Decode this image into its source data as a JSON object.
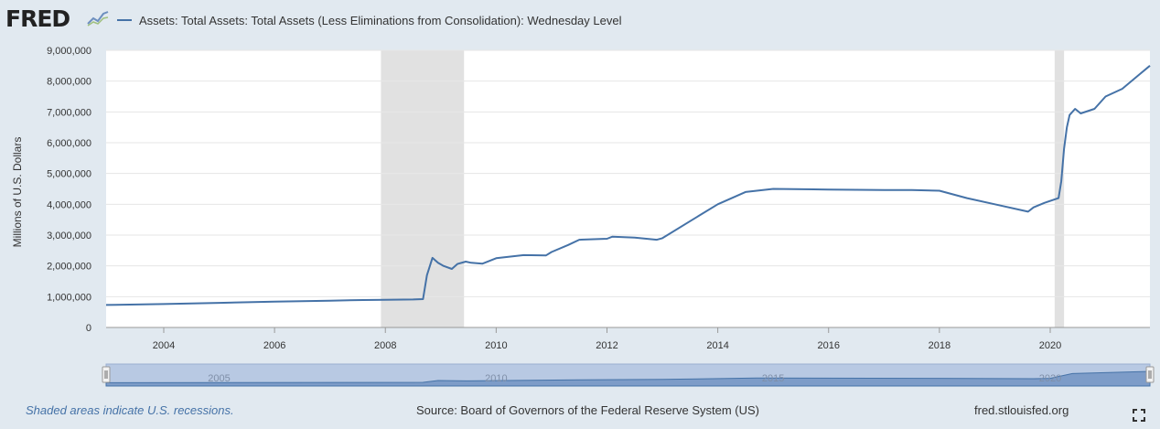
{
  "header": {
    "logo_text": "FRED",
    "logo_icon": "line-graph-icon",
    "legend_label": "Assets: Total Assets: Total Assets (Less Eliminations from Consolidation): Wednesday Level"
  },
  "footer": {
    "recession_note": "Shaded areas indicate U.S. recessions.",
    "source": "Source: Board of Governors of the Federal Reserve System (US)",
    "url": "fred.stlouisfed.org",
    "fullscreen_icon": "fullscreen-icon"
  },
  "navigator": {
    "labels": [
      "2005",
      "2010",
      "2015",
      "2020"
    ]
  },
  "colors": {
    "series": "#4572a7",
    "recession": "#e1e1e1",
    "background": "#e1e9f0",
    "navigator_fill": "#b8c9e3"
  },
  "chart_data": {
    "type": "line",
    "title": "",
    "xlabel": "",
    "ylabel": "Millions of U.S. Dollars",
    "xlim": [
      2002.96,
      2021.8
    ],
    "ylim": [
      0,
      9000000
    ],
    "yticks": [
      0,
      1000000,
      2000000,
      3000000,
      4000000,
      5000000,
      6000000,
      7000000,
      8000000,
      9000000
    ],
    "ytick_labels": [
      "0",
      "1,000,000",
      "2,000,000",
      "3,000,000",
      "4,000,000",
      "5,000,000",
      "6,000,000",
      "7,000,000",
      "8,000,000",
      "9,000,000"
    ],
    "xticks": [
      2004,
      2006,
      2008,
      2010,
      2012,
      2014,
      2016,
      2018,
      2020
    ],
    "xtick_labels": [
      "2004",
      "2006",
      "2008",
      "2010",
      "2012",
      "2014",
      "2016",
      "2018",
      "2020"
    ],
    "grid": true,
    "recessions": [
      [
        2007.92,
        2009.42
      ],
      [
        2020.08,
        2020.25
      ]
    ],
    "series": [
      {
        "name": "Assets: Total Assets: Total Assets (Less Eliminations from Consolidation): Wednesday Level",
        "x": [
          2002.96,
          2004,
          2005,
          2006,
          2007,
          2007.6,
          2008.0,
          2008.5,
          2008.68,
          2008.75,
          2008.85,
          2008.95,
          2009.05,
          2009.2,
          2009.3,
          2009.45,
          2009.55,
          2009.75,
          2010.0,
          2010.5,
          2010.9,
          2011.0,
          2011.3,
          2011.5,
          2012.0,
          2012.1,
          2012.5,
          2012.9,
          2013.0,
          2013.5,
          2014.0,
          2014.5,
          2015.0,
          2016.0,
          2017.0,
          2017.5,
          2018.0,
          2018.5,
          2019.0,
          2019.6,
          2019.7,
          2019.9,
          2020.15,
          2020.2,
          2020.25,
          2020.3,
          2020.35,
          2020.45,
          2020.55,
          2020.8,
          2021.0,
          2021.3,
          2021.6,
          2021.8
        ],
        "y": [
          730000,
          760000,
          800000,
          840000,
          870000,
          890000,
          900000,
          910000,
          920000,
          1700000,
          2260000,
          2100000,
          2000000,
          1900000,
          2060000,
          2140000,
          2100000,
          2070000,
          2250000,
          2350000,
          2340000,
          2450000,
          2680000,
          2850000,
          2880000,
          2950000,
          2920000,
          2850000,
          2900000,
          3450000,
          4000000,
          4400000,
          4500000,
          4480000,
          4460000,
          4460000,
          4440000,
          4200000,
          4000000,
          3760000,
          3900000,
          4050000,
          4200000,
          4750000,
          5800000,
          6500000,
          6900000,
          7100000,
          6950000,
          7100000,
          7500000,
          7750000,
          8200000,
          8500000
        ]
      }
    ],
    "navigator_x": [
      2002.96,
      2008.68,
      2008.95,
      2009.5,
      2011.5,
      2013.0,
      2014.7,
      2018.0,
      2019.7,
      2020.0,
      2020.4,
      2021.8
    ],
    "navigator_y": [
      0.2,
      0.25,
      0.5,
      0.45,
      0.6,
      0.65,
      0.85,
      0.8,
      0.75,
      0.8,
      1.45,
      1.75
    ]
  }
}
